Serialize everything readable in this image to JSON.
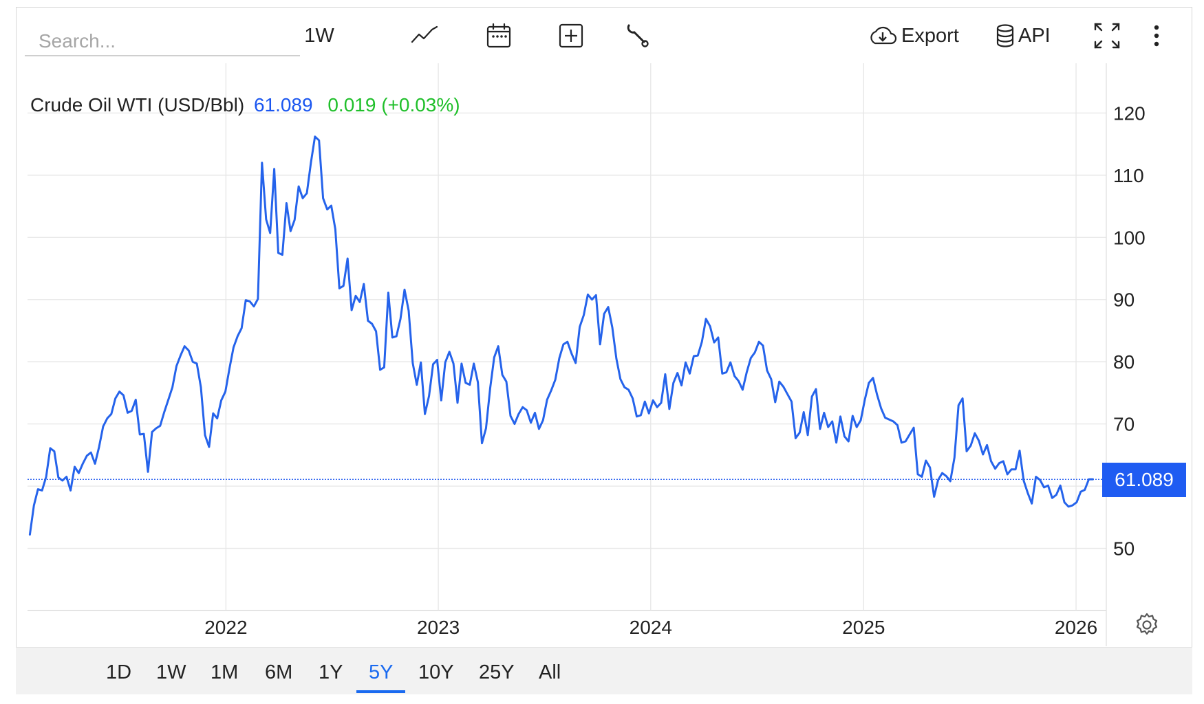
{
  "toolbar": {
    "search_placeholder": "Search...",
    "interval": "1W",
    "export_label": "Export",
    "api_label": "API"
  },
  "legend": {
    "name": "Crude Oil WTI (USD/Bbl)",
    "price": "61.089",
    "change": "0.019 (+0.03%)"
  },
  "price_tag": "61.089",
  "ranges": [
    {
      "label": "1D",
      "active": false
    },
    {
      "label": "1W",
      "active": false
    },
    {
      "label": "1M",
      "active": false
    },
    {
      "label": "6M",
      "active": false
    },
    {
      "label": "1Y",
      "active": false
    },
    {
      "label": "5Y",
      "active": true
    },
    {
      "label": "10Y",
      "active": false
    },
    {
      "label": "25Y",
      "active": false
    },
    {
      "label": "All",
      "active": false
    }
  ],
  "colors": {
    "line": "#2563eb",
    "positive": "#1fbf2a",
    "accent": "#1a6af0",
    "grid": "#e6e6e6"
  },
  "chart_data": {
    "type": "line",
    "x_ticks": [
      "2022",
      "2023",
      "2024",
      "2025",
      "2026"
    ],
    "y_ticks": [
      50,
      60,
      70,
      80,
      90,
      100,
      110,
      120
    ],
    "y_tick_labels": [
      "50",
      "70",
      "80",
      "90",
      "100",
      "110",
      "120"
    ],
    "ylim": [
      40,
      128
    ],
    "xlim": [
      "2021-01-25",
      "2026-02-22"
    ],
    "last_value": 61.089,
    "grid": true,
    "series": [
      {
        "points": [
          [
            "2021-01-29",
            52.2
          ],
          [
            "2021-02-05",
            56.9
          ],
          [
            "2021-02-12",
            59.5
          ],
          [
            "2021-02-19",
            59.3
          ],
          [
            "2021-02-26",
            61.5
          ],
          [
            "2021-03-05",
            66.1
          ],
          [
            "2021-03-12",
            65.6
          ],
          [
            "2021-03-19",
            61.4
          ],
          [
            "2021-03-26",
            60.9
          ],
          [
            "2021-04-02",
            61.5
          ],
          [
            "2021-04-09",
            59.3
          ],
          [
            "2021-04-16",
            63.1
          ],
          [
            "2021-04-23",
            62.1
          ],
          [
            "2021-04-30",
            63.6
          ],
          [
            "2021-05-07",
            64.9
          ],
          [
            "2021-05-14",
            65.4
          ],
          [
            "2021-05-21",
            63.6
          ],
          [
            "2021-05-28",
            66.3
          ],
          [
            "2021-06-04",
            69.6
          ],
          [
            "2021-06-11",
            70.9
          ],
          [
            "2021-06-18",
            71.6
          ],
          [
            "2021-06-25",
            74.1
          ],
          [
            "2021-07-02",
            75.2
          ],
          [
            "2021-07-09",
            74.6
          ],
          [
            "2021-07-16",
            71.8
          ],
          [
            "2021-07-23",
            72.1
          ],
          [
            "2021-07-30",
            73.9
          ],
          [
            "2021-08-06",
            68.3
          ],
          [
            "2021-08-13",
            68.4
          ],
          [
            "2021-08-20",
            62.3
          ],
          [
            "2021-08-27",
            68.7
          ],
          [
            "2021-09-03",
            69.3
          ],
          [
            "2021-09-10",
            69.7
          ],
          [
            "2021-09-17",
            71.9
          ],
          [
            "2021-09-24",
            73.9
          ],
          [
            "2021-10-01",
            75.9
          ],
          [
            "2021-10-08",
            79.3
          ],
          [
            "2021-10-15",
            81.0
          ],
          [
            "2021-10-22",
            82.5
          ],
          [
            "2021-10-29",
            81.8
          ],
          [
            "2021-11-05",
            80.0
          ],
          [
            "2021-11-12",
            79.7
          ],
          [
            "2021-11-19",
            75.9
          ],
          [
            "2021-11-26",
            68.2
          ],
          [
            "2021-12-03",
            66.3
          ],
          [
            "2021-12-10",
            71.7
          ],
          [
            "2021-12-17",
            70.9
          ],
          [
            "2021-12-24",
            73.8
          ],
          [
            "2021-12-31",
            75.2
          ],
          [
            "2022-01-07",
            78.9
          ],
          [
            "2022-01-14",
            82.3
          ],
          [
            "2022-01-21",
            84.1
          ],
          [
            "2022-01-28",
            85.4
          ],
          [
            "2022-02-04",
            89.9
          ],
          [
            "2022-02-11",
            89.7
          ],
          [
            "2022-02-18",
            88.9
          ],
          [
            "2022-02-25",
            90.1
          ],
          [
            "2022-03-04",
            112.0
          ],
          [
            "2022-03-11",
            102.9
          ],
          [
            "2022-03-18",
            100.7
          ],
          [
            "2022-03-25",
            111.0
          ],
          [
            "2022-04-01",
            97.5
          ],
          [
            "2022-04-08",
            97.2
          ],
          [
            "2022-04-15",
            105.5
          ],
          [
            "2022-04-22",
            101.0
          ],
          [
            "2022-04-29",
            102.8
          ],
          [
            "2022-05-06",
            108.2
          ],
          [
            "2022-05-13",
            106.3
          ],
          [
            "2022-05-20",
            107.1
          ],
          [
            "2022-05-27",
            112.0
          ],
          [
            "2022-06-03",
            116.2
          ],
          [
            "2022-06-10",
            115.6
          ],
          [
            "2022-06-17",
            106.3
          ],
          [
            "2022-06-24",
            104.5
          ],
          [
            "2022-07-01",
            105.1
          ],
          [
            "2022-07-08",
            101.3
          ],
          [
            "2022-07-15",
            91.8
          ],
          [
            "2022-07-22",
            92.2
          ],
          [
            "2022-07-29",
            96.6
          ],
          [
            "2022-08-05",
            88.3
          ],
          [
            "2022-08-12",
            90.6
          ],
          [
            "2022-08-19",
            89.6
          ],
          [
            "2022-08-26",
            92.5
          ],
          [
            "2022-09-02",
            86.6
          ],
          [
            "2022-09-09",
            86.1
          ],
          [
            "2022-09-16",
            84.9
          ],
          [
            "2022-09-23",
            78.7
          ],
          [
            "2022-09-30",
            79.1
          ],
          [
            "2022-10-07",
            91.1
          ],
          [
            "2022-10-14",
            83.9
          ],
          [
            "2022-10-21",
            84.1
          ],
          [
            "2022-10-28",
            86.9
          ],
          [
            "2022-11-04",
            91.6
          ],
          [
            "2022-11-11",
            88.2
          ],
          [
            "2022-11-18",
            79.8
          ],
          [
            "2022-11-25",
            76.3
          ],
          [
            "2022-12-02",
            79.9
          ],
          [
            "2022-12-09",
            71.6
          ],
          [
            "2022-12-16",
            74.5
          ],
          [
            "2022-12-23",
            79.6
          ],
          [
            "2022-12-30",
            80.3
          ],
          [
            "2023-01-06",
            73.8
          ],
          [
            "2023-01-13",
            79.9
          ],
          [
            "2023-01-20",
            81.6
          ],
          [
            "2023-01-27",
            79.7
          ],
          [
            "2023-02-03",
            73.4
          ],
          [
            "2023-02-10",
            79.7
          ],
          [
            "2023-02-17",
            76.6
          ],
          [
            "2023-02-24",
            76.3
          ],
          [
            "2023-03-03",
            79.7
          ],
          [
            "2023-03-10",
            76.7
          ],
          [
            "2023-03-17",
            66.9
          ],
          [
            "2023-03-24",
            69.3
          ],
          [
            "2023-03-31",
            75.7
          ],
          [
            "2023-04-07",
            80.7
          ],
          [
            "2023-04-14",
            82.5
          ],
          [
            "2023-04-21",
            77.9
          ],
          [
            "2023-04-28",
            76.8
          ],
          [
            "2023-05-05",
            71.3
          ],
          [
            "2023-05-12",
            70.0
          ],
          [
            "2023-05-19",
            71.6
          ],
          [
            "2023-05-26",
            72.7
          ],
          [
            "2023-06-02",
            72.2
          ],
          [
            "2023-06-09",
            70.2
          ],
          [
            "2023-06-16",
            71.8
          ],
          [
            "2023-06-23",
            69.2
          ],
          [
            "2023-06-30",
            70.6
          ],
          [
            "2023-07-07",
            73.9
          ],
          [
            "2023-07-14",
            75.4
          ],
          [
            "2023-07-21",
            77.1
          ],
          [
            "2023-07-28",
            80.6
          ],
          [
            "2023-08-04",
            82.8
          ],
          [
            "2023-08-11",
            83.2
          ],
          [
            "2023-08-18",
            81.3
          ],
          [
            "2023-08-25",
            79.8
          ],
          [
            "2023-09-01",
            85.6
          ],
          [
            "2023-09-08",
            87.5
          ],
          [
            "2023-09-15",
            90.8
          ],
          [
            "2023-09-22",
            90.0
          ],
          [
            "2023-09-29",
            90.7
          ],
          [
            "2023-10-06",
            82.8
          ],
          [
            "2023-10-13",
            87.7
          ],
          [
            "2023-10-20",
            88.8
          ],
          [
            "2023-10-27",
            85.5
          ],
          [
            "2023-11-03",
            80.5
          ],
          [
            "2023-11-10",
            77.2
          ],
          [
            "2023-11-17",
            75.9
          ],
          [
            "2023-11-24",
            75.5
          ],
          [
            "2023-12-01",
            74.1
          ],
          [
            "2023-12-08",
            71.2
          ],
          [
            "2023-12-15",
            71.4
          ],
          [
            "2023-12-22",
            73.6
          ],
          [
            "2023-12-29",
            71.7
          ],
          [
            "2024-01-05",
            73.8
          ],
          [
            "2024-01-12",
            72.7
          ],
          [
            "2024-01-19",
            73.4
          ],
          [
            "2024-01-26",
            78.0
          ],
          [
            "2024-02-02",
            72.4
          ],
          [
            "2024-02-09",
            76.6
          ],
          [
            "2024-02-16",
            78.2
          ],
          [
            "2024-02-23",
            76.2
          ],
          [
            "2024-03-01",
            79.9
          ],
          [
            "2024-03-08",
            78.1
          ],
          [
            "2024-03-15",
            80.9
          ],
          [
            "2024-03-22",
            81.0
          ],
          [
            "2024-03-29",
            83.2
          ],
          [
            "2024-04-05",
            86.9
          ],
          [
            "2024-04-12",
            85.7
          ],
          [
            "2024-04-19",
            83.1
          ],
          [
            "2024-04-26",
            83.9
          ],
          [
            "2024-05-03",
            78.1
          ],
          [
            "2024-05-10",
            78.3
          ],
          [
            "2024-05-17",
            79.9
          ],
          [
            "2024-05-24",
            77.7
          ],
          [
            "2024-05-31",
            76.9
          ],
          [
            "2024-06-07",
            75.5
          ],
          [
            "2024-06-14",
            78.3
          ],
          [
            "2024-06-21",
            80.6
          ],
          [
            "2024-06-28",
            81.5
          ],
          [
            "2024-07-05",
            83.2
          ],
          [
            "2024-07-12",
            82.6
          ],
          [
            "2024-07-19",
            78.6
          ],
          [
            "2024-07-26",
            77.2
          ],
          [
            "2024-08-02",
            73.5
          ],
          [
            "2024-08-09",
            76.8
          ],
          [
            "2024-08-16",
            76.0
          ],
          [
            "2024-08-23",
            74.8
          ],
          [
            "2024-08-30",
            73.6
          ],
          [
            "2024-09-06",
            67.7
          ],
          [
            "2024-09-13",
            68.6
          ],
          [
            "2024-09-20",
            71.9
          ],
          [
            "2024-09-27",
            68.2
          ],
          [
            "2024-10-04",
            74.4
          ],
          [
            "2024-10-11",
            75.6
          ],
          [
            "2024-10-18",
            69.2
          ],
          [
            "2024-10-25",
            71.8
          ],
          [
            "2024-11-01",
            69.5
          ],
          [
            "2024-11-08",
            70.4
          ],
          [
            "2024-11-15",
            67.0
          ],
          [
            "2024-11-22",
            71.2
          ],
          [
            "2024-11-29",
            68.0
          ],
          [
            "2024-12-06",
            67.2
          ],
          [
            "2024-12-13",
            71.3
          ],
          [
            "2024-12-20",
            69.5
          ],
          [
            "2024-12-27",
            70.6
          ],
          [
            "2025-01-03",
            73.9
          ],
          [
            "2025-01-10",
            76.6
          ],
          [
            "2025-01-17",
            77.4
          ],
          [
            "2025-01-24",
            74.7
          ],
          [
            "2025-01-31",
            72.5
          ],
          [
            "2025-02-07",
            71.0
          ],
          [
            "2025-02-14",
            70.7
          ],
          [
            "2025-02-21",
            70.4
          ],
          [
            "2025-02-28",
            69.8
          ],
          [
            "2025-03-07",
            67.0
          ],
          [
            "2025-03-14",
            67.2
          ],
          [
            "2025-03-21",
            68.3
          ],
          [
            "2025-03-28",
            69.4
          ],
          [
            "2025-04-04",
            61.9
          ],
          [
            "2025-04-11",
            61.5
          ],
          [
            "2025-04-18",
            64.1
          ],
          [
            "2025-04-25",
            63.0
          ],
          [
            "2025-05-02",
            58.3
          ],
          [
            "2025-05-09",
            61.0
          ],
          [
            "2025-05-16",
            62.1
          ],
          [
            "2025-05-23",
            61.6
          ],
          [
            "2025-05-30",
            60.8
          ],
          [
            "2025-06-06",
            64.6
          ],
          [
            "2025-06-13",
            73.0
          ],
          [
            "2025-06-20",
            74.1
          ],
          [
            "2025-06-27",
            65.6
          ],
          [
            "2025-07-04",
            66.5
          ],
          [
            "2025-07-11",
            68.5
          ],
          [
            "2025-07-18",
            67.3
          ],
          [
            "2025-07-25",
            65.1
          ],
          [
            "2025-08-01",
            66.6
          ],
          [
            "2025-08-08",
            64.0
          ],
          [
            "2025-08-15",
            62.8
          ],
          [
            "2025-08-22",
            63.7
          ],
          [
            "2025-08-29",
            64.0
          ],
          [
            "2025-09-05",
            61.9
          ],
          [
            "2025-09-12",
            62.7
          ],
          [
            "2025-09-19",
            62.7
          ],
          [
            "2025-09-26",
            65.7
          ],
          [
            "2025-10-03",
            60.9
          ],
          [
            "2025-10-10",
            58.9
          ],
          [
            "2025-10-17",
            57.2
          ],
          [
            "2025-10-24",
            61.5
          ],
          [
            "2025-10-31",
            61.0
          ],
          [
            "2025-11-07",
            59.8
          ],
          [
            "2025-11-14",
            60.1
          ],
          [
            "2025-11-21",
            58.1
          ],
          [
            "2025-11-28",
            58.6
          ],
          [
            "2025-12-05",
            60.1
          ],
          [
            "2025-12-12",
            57.4
          ],
          [
            "2025-12-19",
            56.7
          ],
          [
            "2025-12-26",
            56.9
          ],
          [
            "2026-01-02",
            57.4
          ],
          [
            "2026-01-09",
            59.1
          ],
          [
            "2026-01-16",
            59.4
          ],
          [
            "2026-01-23",
            61.1
          ],
          [
            "2026-01-30",
            61.1
          ]
        ]
      }
    ]
  }
}
